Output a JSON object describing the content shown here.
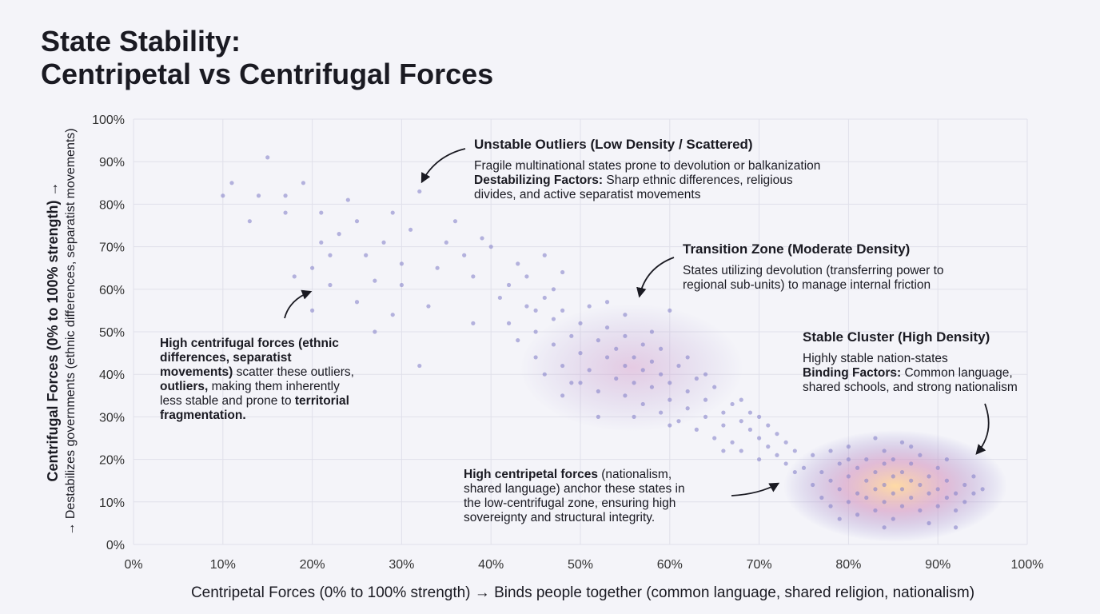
{
  "chart_data": {
    "type": "scatter",
    "title_lines": [
      "State Stability:",
      "Centripetal vs Centrifugal Forces"
    ],
    "x_label": "Centripetal Forces (0% to 100% strength) → Binds people together (common language, shared religion, nationalism)",
    "y_label": "Centrifugal Forces (0% to 100% strength) →",
    "y_sublabel": "→ Destabilizes governments (ethnic differences, separatist movements)",
    "xlim": [
      0,
      100
    ],
    "ylim": [
      0,
      100
    ],
    "xticks": [
      {
        "value": 0,
        "label": "0%"
      },
      {
        "value": 10,
        "label": "10%"
      },
      {
        "value": 20,
        "label": "20%"
      },
      {
        "value": 30,
        "label": "30%"
      },
      {
        "value": 40,
        "label": "40%"
      },
      {
        "value": 50,
        "label": "50%"
      },
      {
        "value": 60,
        "label": "60%"
      },
      {
        "value": 70,
        "label": "70%"
      },
      {
        "value": 80,
        "label": "80%"
      },
      {
        "value": 90,
        "label": "90%"
      },
      {
        "value": 100,
        "label": "100%"
      }
    ],
    "yticks": [
      {
        "value": 0,
        "label": "0%"
      },
      {
        "value": 10,
        "label": "10%"
      },
      {
        "value": 20,
        "label": "20%"
      },
      {
        "value": 30,
        "label": "30%"
      },
      {
        "value": 40,
        "label": "40%"
      },
      {
        "value": 50,
        "label": "50%"
      },
      {
        "value": 60,
        "label": "60%"
      },
      {
        "value": 70,
        "label": "70%"
      },
      {
        "value": 80,
        "label": "80%"
      },
      {
        "value": 90,
        "label": "90%"
      },
      {
        "value": 100,
        "label": "100%"
      }
    ],
    "grid": true,
    "color": "#8783c9",
    "x": [
      10,
      11,
      13,
      14,
      15,
      17,
      17,
      18,
      19,
      20,
      21,
      21,
      22,
      23,
      24,
      25,
      26,
      27,
      28,
      29,
      30,
      30,
      31,
      32,
      33,
      34,
      35,
      36,
      37,
      38,
      39,
      40,
      41,
      42,
      43,
      44,
      45,
      46,
      47,
      48,
      20,
      25,
      29,
      32,
      38,
      22,
      27,
      42,
      43,
      44,
      45,
      45,
      46,
      47,
      47,
      48,
      48,
      49,
      49,
      50,
      50,
      51,
      51,
      52,
      52,
      53,
      53,
      54,
      54,
      55,
      55,
      55,
      56,
      56,
      57,
      57,
      57,
      58,
      58,
      59,
      59,
      59,
      60,
      60,
      61,
      61,
      62,
      62,
      63,
      63,
      64,
      64,
      65,
      65,
      66,
      66,
      67,
      67,
      68,
      68,
      69,
      69,
      70,
      70,
      71,
      71,
      72,
      72,
      73,
      73,
      74,
      74,
      53,
      58,
      60,
      50,
      46,
      62,
      56,
      64,
      66,
      68,
      52,
      48,
      70,
      55,
      60,
      75,
      76,
      76,
      77,
      77,
      78,
      78,
      78,
      79,
      79,
      80,
      80,
      80,
      81,
      81,
      81,
      82,
      82,
      82,
      83,
      83,
      83,
      84,
      84,
      84,
      84,
      85,
      85,
      85,
      85,
      86,
      86,
      86,
      86,
      87,
      87,
      87,
      88,
      88,
      88,
      89,
      89,
      89,
      90,
      90,
      90,
      91,
      91,
      91,
      92,
      92,
      93,
      93,
      94,
      94,
      95,
      83,
      87,
      79,
      92,
      80,
      84
    ],
    "values": [
      82,
      85,
      76,
      82,
      91,
      78,
      82,
      63,
      85,
      65,
      71,
      78,
      68,
      73,
      81,
      76,
      68,
      62,
      71,
      78,
      66,
      61,
      74,
      83,
      56,
      65,
      71,
      76,
      68,
      63,
      72,
      70,
      58,
      61,
      66,
      63,
      55,
      68,
      60,
      64,
      55,
      57,
      54,
      42,
      52,
      61,
      50,
      52,
      48,
      56,
      50,
      44,
      58,
      47,
      53,
      42,
      55,
      49,
      38,
      52,
      45,
      41,
      56,
      48,
      36,
      44,
      51,
      39,
      46,
      42,
      49,
      35,
      44,
      38,
      47,
      41,
      33,
      43,
      37,
      40,
      46,
      31,
      38,
      34,
      42,
      29,
      36,
      32,
      39,
      27,
      34,
      30,
      37,
      25,
      31,
      28,
      33,
      24,
      29,
      22,
      27,
      31,
      25,
      20,
      28,
      23,
      21,
      26,
      19,
      24,
      22,
      17,
      57,
      50,
      28,
      38,
      40,
      44,
      30,
      40,
      22,
      34,
      30,
      35,
      30,
      54,
      55,
      18,
      14,
      21,
      11,
      17,
      15,
      22,
      9,
      13,
      19,
      16,
      10,
      23,
      12,
      18,
      7,
      15,
      20,
      11,
      13,
      17,
      8,
      14,
      19,
      10,
      22,
      12,
      16,
      6,
      20,
      13,
      9,
      17,
      24,
      11,
      15,
      19,
      14,
      8,
      21,
      12,
      16,
      5,
      13,
      18,
      9,
      11,
      15,
      20,
      12,
      8,
      14,
      10,
      12,
      16,
      13,
      25,
      23,
      6,
      4,
      20,
      4
    ],
    "annotations": [
      {
        "title": "Unstable Outliers (Low Density / Scattered)",
        "lines": [
          [
            {
              "text": "Fragile multinational states prone to devolution or balkanization"
            }
          ],
          [
            {
              "text": "Destabilizing Factors:",
              "bold": true
            },
            {
              "text": " Sharp ethnic differences, religious"
            }
          ],
          [
            {
              "text": "divides, and active separatist movements"
            }
          ]
        ]
      },
      {
        "title": "Transition Zone (Moderate Density)",
        "lines": [
          [
            {
              "text": "States utilizing devolution (transferring power to"
            }
          ],
          [
            {
              "text": "regional sub-units) to manage internal friction"
            }
          ]
        ]
      },
      {
        "title": "Stable Cluster (High Density)",
        "lines": [
          [
            {
              "text": "Highly stable nation-states"
            }
          ],
          [
            {
              "text": "Binding Factors:",
              "bold": true
            },
            {
              "text": " Common language,"
            }
          ],
          [
            {
              "text": "shared schools, and strong nationalism"
            }
          ]
        ]
      },
      {
        "lines": [
          [
            {
              "text": "High centrifugal forces (ethnic",
              "bold": true
            }
          ],
          [
            {
              "text": "differences, separatist",
              "bold": true
            }
          ],
          [
            {
              "text": "movements)",
              "bold": true
            },
            {
              "text": " scatter these outliers,"
            }
          ],
          [
            {
              "text": "outliers,",
              "bold": true
            },
            {
              "text": " making them inherently"
            }
          ],
          [
            {
              "text": "less stable and prone to "
            },
            {
              "text": "territorial",
              "bold": true
            }
          ],
          [
            {
              "text": "fragmentation.",
              "bold": true
            }
          ]
        ]
      },
      {
        "lines": [
          [
            {
              "text": "High centripetal forces",
              "bold": true
            },
            {
              "text": " (nationalism,"
            }
          ],
          [
            {
              "text": "shared language) anchor these states in"
            }
          ],
          [
            {
              "text": "the low-centrifugal zone, ensuring high"
            }
          ],
          [
            {
              "text": "sovereignty and structural integrity."
            }
          ]
        ]
      }
    ]
  }
}
